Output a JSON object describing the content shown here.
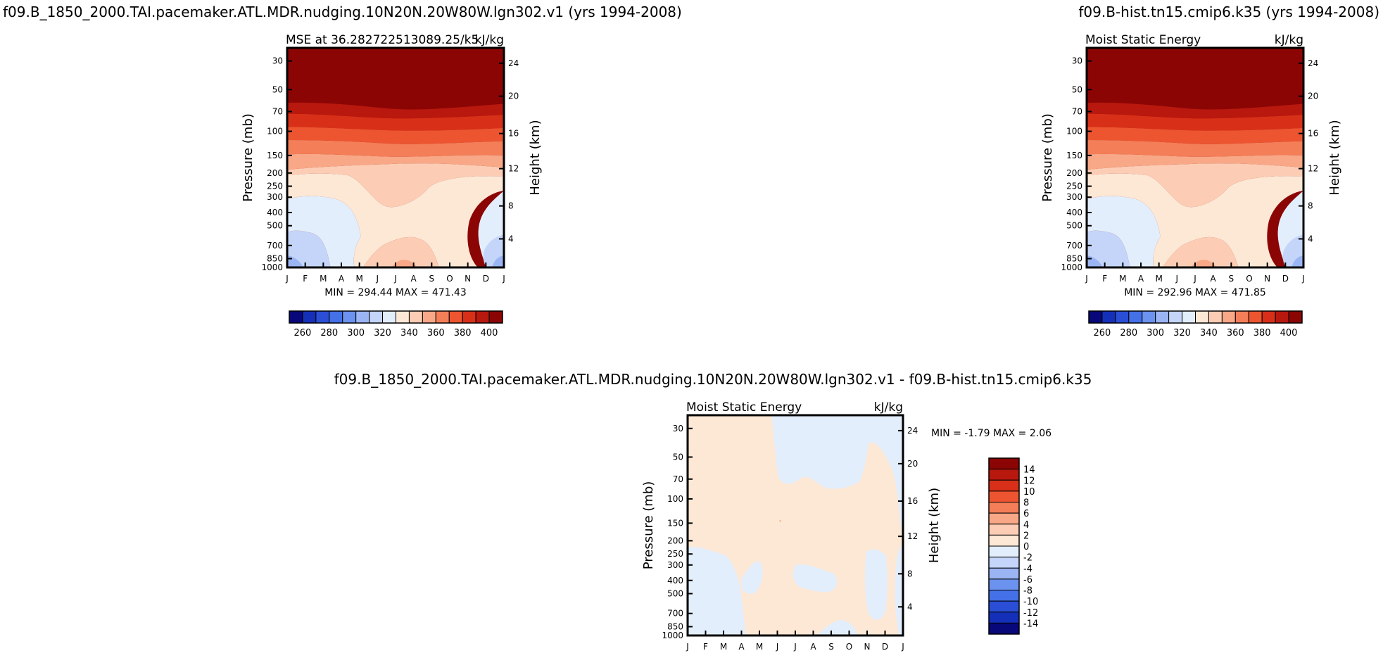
{
  "chart_data": [
    {
      "type": "heatmap",
      "id": "left",
      "title_left": "f09.B_1850_2000.TAI.pacemaker.ATL.MDR.nudging.10N20N.20W80W.lgn302.v1 (yrs 1994-2008)",
      "subtitle_left": "MSE at 36.282722513089.25/k5",
      "subtitle_right": "kJ/kg",
      "ylabel": "Pressure (mb)",
      "ylabel_right": "Height (km)",
      "months": [
        "J",
        "F",
        "M",
        "A",
        "M",
        "J",
        "J",
        "A",
        "S",
        "O",
        "N",
        "D",
        "J"
      ],
      "pressure_ticks": [
        "30",
        "50",
        "70",
        "100",
        "150",
        "200",
        "250",
        "300",
        "400",
        "500",
        "700",
        "850",
        "1000"
      ],
      "height_ticks": [
        "24",
        "20",
        "16",
        "12",
        "8",
        "4"
      ],
      "min_max": "MIN = 294.44   MAX = 471.43",
      "colorbar_labels": [
        "260",
        "280",
        "300",
        "320",
        "340",
        "360",
        "380",
        "400"
      ]
    },
    {
      "type": "heatmap",
      "id": "right",
      "title_right": "f09.B-hist.tn15.cmip6.k35 (yrs 1994-2008)",
      "subtitle_left": "Moist Static Energy",
      "subtitle_right": "kJ/kg",
      "ylabel": "Pressure (mb)",
      "ylabel_right": "Height (km)",
      "months": [
        "J",
        "F",
        "M",
        "A",
        "M",
        "J",
        "J",
        "A",
        "S",
        "O",
        "N",
        "D",
        "J"
      ],
      "pressure_ticks": [
        "30",
        "50",
        "70",
        "100",
        "150",
        "200",
        "250",
        "300",
        "400",
        "500",
        "700",
        "850",
        "1000"
      ],
      "height_ticks": [
        "24",
        "20",
        "16",
        "12",
        "8",
        "4"
      ],
      "min_max": "MIN = 292.96   MAX = 471.85",
      "colorbar_labels": [
        "260",
        "280",
        "300",
        "320",
        "340",
        "360",
        "380",
        "400"
      ]
    },
    {
      "type": "heatmap",
      "id": "diff",
      "title": "f09.B_1850_2000.TAI.pacemaker.ATL.MDR.nudging.10N20N.20W80W.lgn302.v1 - f09.B-hist.tn15.cmip6.k35",
      "subtitle_left": "Moist Static Energy",
      "subtitle_right": "kJ/kg",
      "ylabel": "Pressure (mb)",
      "ylabel_right": "Height (km)",
      "months": [
        "J",
        "F",
        "M",
        "A",
        "M",
        "J",
        "J",
        "A",
        "S",
        "O",
        "N",
        "D",
        "J"
      ],
      "pressure_ticks": [
        "30",
        "50",
        "70",
        "100",
        "150",
        "200",
        "250",
        "300",
        "400",
        "500",
        "700",
        "850",
        "1000"
      ],
      "height_ticks": [
        "24",
        "20",
        "16",
        "12",
        "8",
        "4"
      ],
      "min_max": "MIN =   -1.79   MAX =    2.06",
      "colorbar_labels": [
        "14",
        "12",
        "10",
        "8",
        "6",
        "4",
        "2",
        "0",
        "-2",
        "-4",
        "-6",
        "-8",
        "-10",
        "-12",
        "-14"
      ]
    }
  ],
  "colors": {
    "abs_scale": [
      "#08087a",
      "#1530b8",
      "#2a4fd6",
      "#4470e8",
      "#6b92ee",
      "#9bb5f4",
      "#c4d5f9",
      "#e3eefc",
      "#fde8d6",
      "#fccdb4",
      "#f9a887",
      "#f47e58",
      "#ec5530",
      "#d83018",
      "#b8180e",
      "#8b0505"
    ],
    "diff_scale": [
      "#8b0505",
      "#b8180e",
      "#d83018",
      "#ec5530",
      "#f47e58",
      "#f9a887",
      "#fccdb4",
      "#fde8d6",
      "#e3eefc",
      "#c4d5f9",
      "#9bb5f4",
      "#6b92ee",
      "#4470e8",
      "#2a4fd6",
      "#1530b8",
      "#08087a"
    ],
    "diff_positive": "#fde8d6",
    "diff_negative": "#e3eefc"
  }
}
